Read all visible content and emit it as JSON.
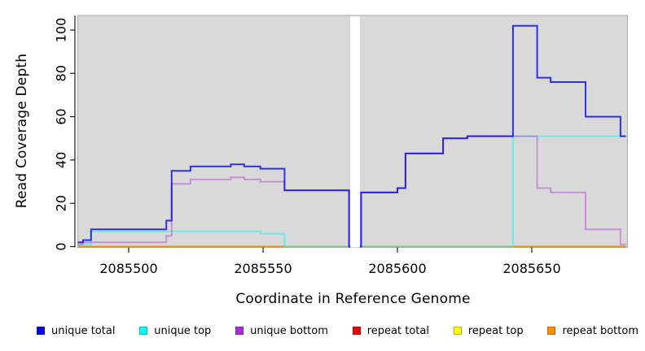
{
  "figure": {
    "background": "#FFFFFF",
    "panel_bg": "#D9D9D9",
    "panel_border": "#ABABAB",
    "axis_color": "#1A1A1A",
    "tick_label_color": "#000000"
  },
  "chart_data": {
    "type": "line",
    "step": true,
    "title": "",
    "xlabel": "Coordinate in Reference Genome",
    "ylabel": "Read Coverage Depth",
    "xlim": [
      2085481,
      2085685
    ],
    "ylim": [
      0,
      107
    ],
    "x_ticks": [
      2085500,
      2085550,
      2085600,
      2085650
    ],
    "y_ticks": [
      0,
      20,
      40,
      60,
      80,
      100
    ],
    "grid": false,
    "legend_position": "bottom",
    "masked_region": {
      "x_start": 2085582.45,
      "x_end": 2085586.05,
      "color": "#FFFFFF"
    },
    "series": [
      {
        "name": "repeat total",
        "color": "#EE0000",
        "opacity": 1.0,
        "points": [
          [
            2085481,
            0
          ]
        ]
      },
      {
        "name": "repeat top",
        "color": "#FFFF00",
        "opacity": 1.0,
        "points": [
          [
            2085481,
            0
          ]
        ]
      },
      {
        "name": "repeat bottom",
        "color": "#FF8C00",
        "opacity": 1.0,
        "points": [
          [
            2085481,
            0
          ]
        ]
      },
      {
        "name": "unique top",
        "color": "#00FFFF",
        "opacity": 0.5,
        "points": [
          [
            2085481,
            1
          ],
          [
            2085486,
            7
          ],
          [
            2085549,
            6
          ],
          [
            2085558,
            0
          ],
          [
            2085643,
            51
          ]
        ]
      },
      {
        "name": "unique bottom",
        "color": "#BA55D3",
        "opacity": 0.55,
        "points": [
          [
            2085481,
            1
          ],
          [
            2085483,
            2
          ],
          [
            2085486,
            2
          ],
          [
            2085514,
            5
          ],
          [
            2085516,
            29
          ],
          [
            2085523,
            31
          ],
          [
            2085538,
            32
          ],
          [
            2085543,
            31
          ],
          [
            2085549,
            30
          ],
          [
            2085558,
            26
          ],
          [
            2085582,
            0
          ],
          [
            2085586.5,
            25
          ],
          [
            2085600,
            27
          ],
          [
            2085603,
            43
          ],
          [
            2085617,
            50
          ],
          [
            2085626,
            51
          ],
          [
            2085643,
            51
          ],
          [
            2085652,
            27
          ],
          [
            2085657,
            25
          ],
          [
            2085670,
            8
          ],
          [
            2085683,
            1
          ]
        ]
      },
      {
        "name": "unique total",
        "color": "#0000EE",
        "opacity": 0.78,
        "points": [
          [
            2085481,
            2
          ],
          [
            2085483,
            3
          ],
          [
            2085486,
            8
          ],
          [
            2085514,
            12
          ],
          [
            2085516,
            35
          ],
          [
            2085523,
            37
          ],
          [
            2085538,
            38
          ],
          [
            2085543,
            37
          ],
          [
            2085549,
            36
          ],
          [
            2085558,
            26
          ],
          [
            2085582,
            0
          ],
          [
            2085586.5,
            25
          ],
          [
            2085600,
            27
          ],
          [
            2085603,
            43
          ],
          [
            2085617,
            50
          ],
          [
            2085626,
            51
          ],
          [
            2085643,
            102
          ],
          [
            2085652,
            78
          ],
          [
            2085657,
            76
          ],
          [
            2085670,
            60
          ],
          [
            2085683,
            51
          ]
        ]
      }
    ]
  },
  "legend": {
    "items": [
      {
        "label": "unique total",
        "color": "#0000EE"
      },
      {
        "label": "unique top",
        "color": "#00FFFF"
      },
      {
        "label": "unique bottom",
        "color": "#A92BD6"
      },
      {
        "label": "repeat total",
        "color": "#EE0000"
      },
      {
        "label": "repeat top",
        "color": "#FFFF00"
      },
      {
        "label": "repeat bottom",
        "color": "#FF8C00"
      }
    ]
  }
}
